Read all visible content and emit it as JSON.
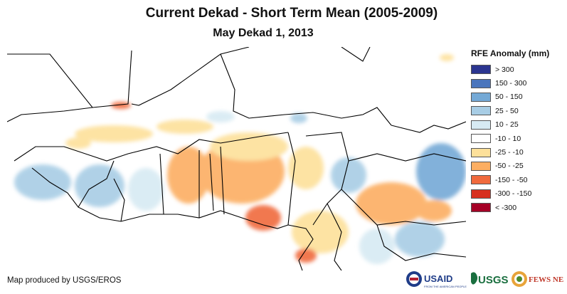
{
  "header": {
    "title": "Current Dekad - Short Term Mean (2005-2009)",
    "subtitle": "May Dekad 1, 2013"
  },
  "legend": {
    "title": "RFE Anomaly (mm)",
    "items": [
      {
        "label": "> 300",
        "color": "#2b3590"
      },
      {
        "label": "150 - 300",
        "color": "#4a75bd"
      },
      {
        "label": "50 - 150",
        "color": "#74a9d6"
      },
      {
        "label": "25 - 50",
        "color": "#a8cde5"
      },
      {
        "label": "10 - 25",
        "color": "#d7eaf3"
      },
      {
        "label": "-10 - 10",
        "color": "#ffffff"
      },
      {
        "label": "-25 - -10",
        "color": "#fde09a"
      },
      {
        "label": "-50 - -25",
        "color": "#fcae62"
      },
      {
        "label": "-150 - -50",
        "color": "#f06a3d"
      },
      {
        "label": "-300 - -150",
        "color": "#d7301f"
      },
      {
        "label": "< -300",
        "color": "#a50026"
      }
    ]
  },
  "footer": {
    "credit": "Map produced by USGS/EROS",
    "logos": {
      "usaid": "USAID",
      "usaid_tagline": "FROM THE AMERICAN PEOPLE",
      "usgs": "USGS",
      "fewsnet": "FEWS NET"
    }
  }
}
